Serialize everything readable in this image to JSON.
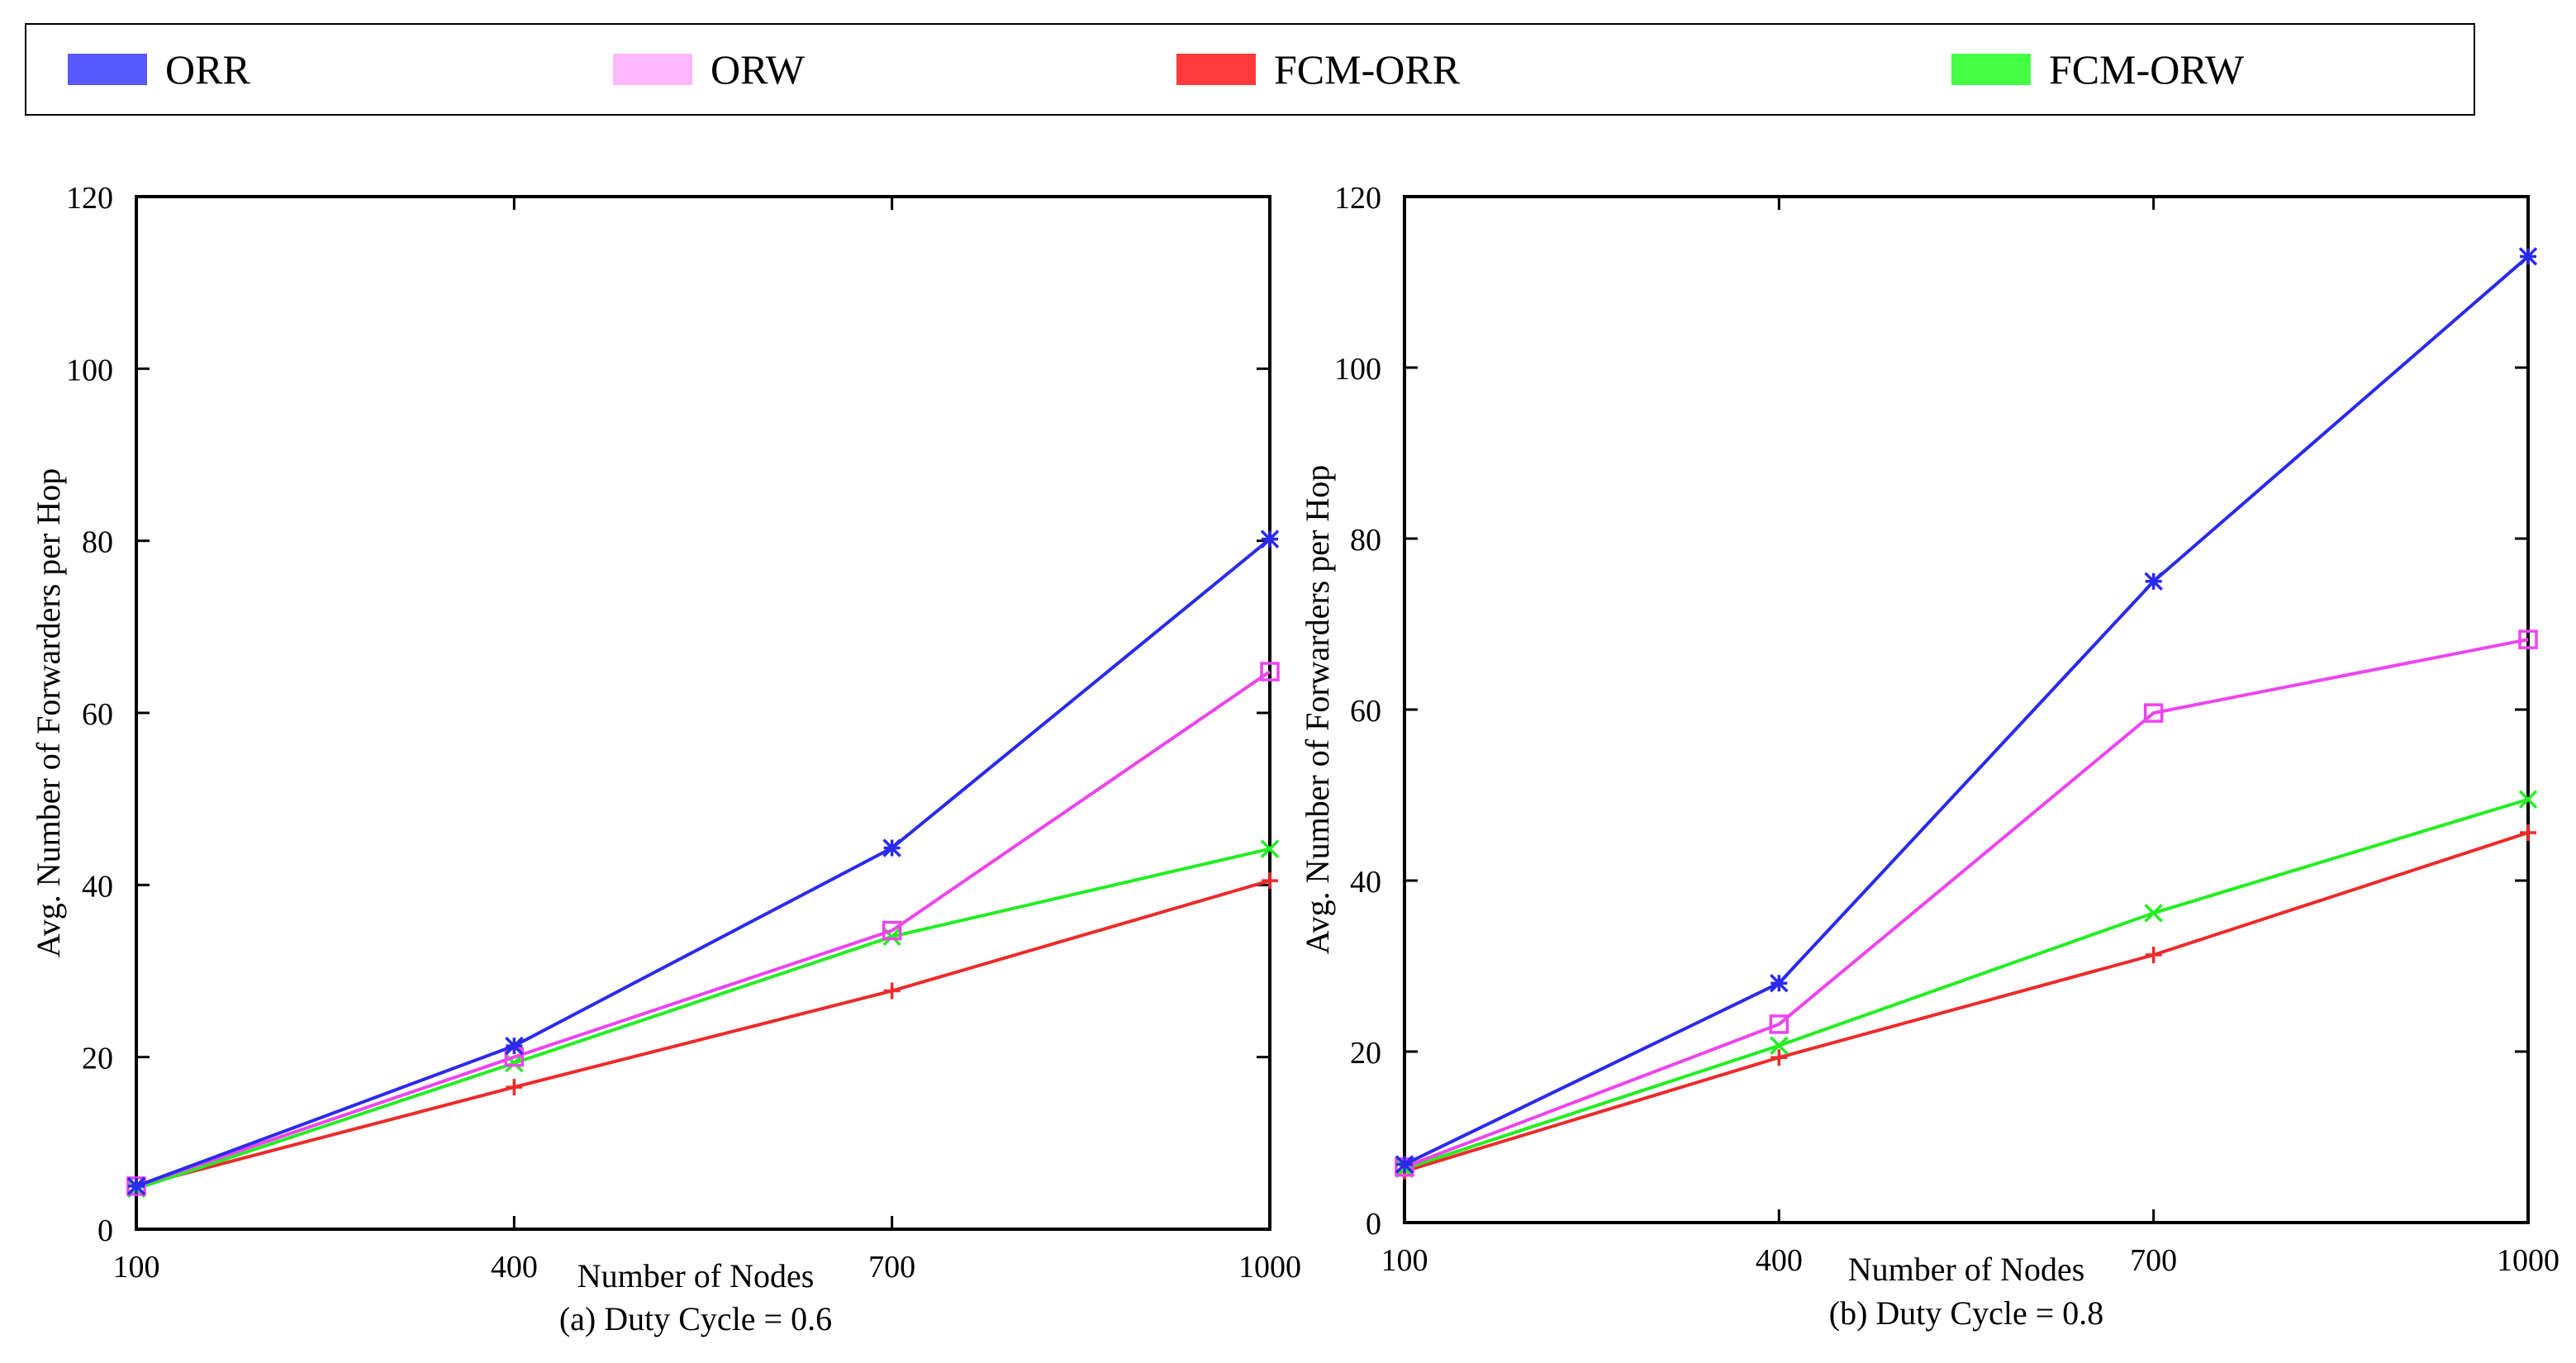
{
  "legend": {
    "items": [
      {
        "label": "ORR",
        "color": "#5858ff"
      },
      {
        "label": "ORW",
        "color": "#ffb8ff"
      },
      {
        "label": "FCM-ORR",
        "color": "#ff3a3a"
      },
      {
        "label": "FCM-ORW",
        "color": "#44ff44"
      }
    ]
  },
  "chart_data": [
    {
      "type": "line",
      "caption": "(a) Duty Cycle = 0.6",
      "title": "",
      "xlabel": "Number of Nodes",
      "ylabel": "Avg. Number of Forwarders per Hop",
      "x": [
        100,
        400,
        700,
        1000
      ],
      "xticks": [
        "100",
        "400",
        "700",
        "1000"
      ],
      "yticks": [
        "0",
        "20",
        "40",
        "60",
        "80",
        "100",
        "120"
      ],
      "ylim": [
        0,
        120
      ],
      "series": [
        {
          "name": "ORR",
          "color": "#2a2aee",
          "marker": "star",
          "values": [
            5,
            21.3,
            44.3,
            80.2
          ]
        },
        {
          "name": "ORW",
          "color": "#ee44ee",
          "marker": "square",
          "values": [
            5,
            20,
            34.7,
            64.8
          ]
        },
        {
          "name": "FCM-ORR",
          "color": "#ee2a2a",
          "marker": "plus",
          "values": [
            5,
            16.5,
            27.7,
            40.5
          ]
        },
        {
          "name": "FCM-ORW",
          "color": "#22ee22",
          "marker": "x",
          "values": [
            4.7,
            19.3,
            34,
            44.2
          ]
        }
      ]
    },
    {
      "type": "line",
      "caption": "(b) Duty Cycle = 0.8",
      "title": "",
      "xlabel": "Number of Nodes",
      "ylabel": "Avg. Number of Forwarders per Hop",
      "x": [
        100,
        400,
        700,
        1000
      ],
      "xticks": [
        "100",
        "400",
        "700",
        "1000"
      ],
      "yticks": [
        "0",
        "20",
        "40",
        "60",
        "80",
        "100",
        "120"
      ],
      "ylim": [
        0,
        120
      ],
      "series": [
        {
          "name": "ORR",
          "color": "#2a2aee",
          "marker": "star",
          "values": [
            6.8,
            28,
            75,
            113
          ]
        },
        {
          "name": "ORW",
          "color": "#ee44ee",
          "marker": "square",
          "values": [
            6.5,
            23.2,
            59.6,
            68.2
          ]
        },
        {
          "name": "FCM-ORR",
          "color": "#ee2a2a",
          "marker": "plus",
          "values": [
            6,
            19.3,
            31.3,
            45.6
          ]
        },
        {
          "name": "FCM-ORW",
          "color": "#22ee22",
          "marker": "x",
          "values": [
            6.3,
            20.7,
            36.2,
            49.5
          ]
        }
      ]
    }
  ]
}
